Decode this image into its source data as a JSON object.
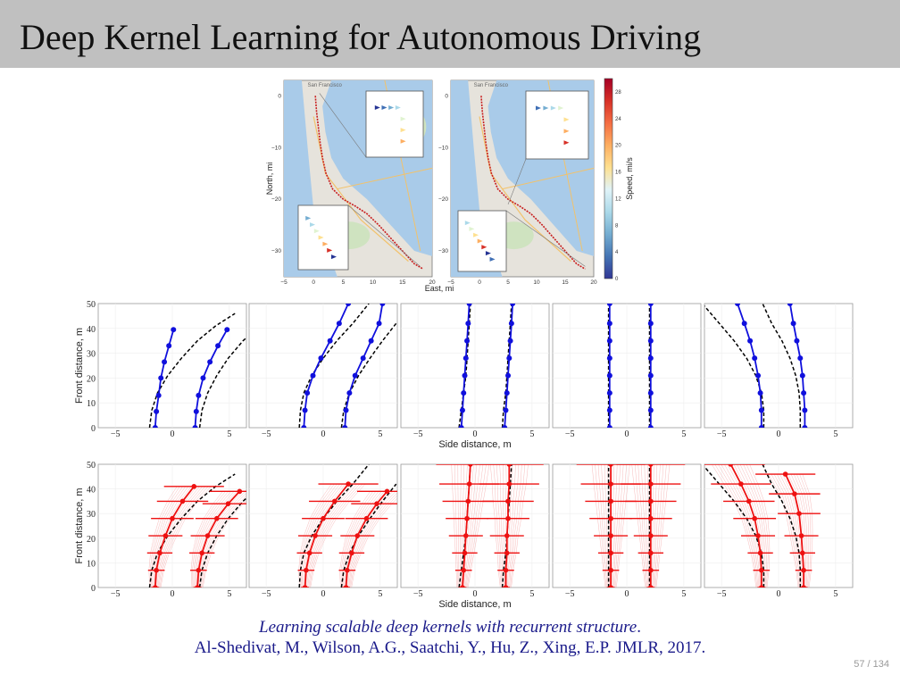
{
  "slide": {
    "title": "Deep Kernel Learning for Autonomous Driving",
    "caption_title": "Learning scalable deep kernels with recurrent structure",
    "caption_period": ".",
    "caption_authors": "Al-Shedivat, M., Wilson, A.G., Saatchi, Y., Hu, Z., Xing, E.P. JMLR, 2017.",
    "page_number": "57 / 134"
  },
  "colors": {
    "route": "#c81e1e",
    "obs": "#1010dd",
    "pred": "#ee1111",
    "truth": "#000000",
    "water": "#a9cbe9",
    "land": "#e6e3dc",
    "park": "#cfe3c0"
  },
  "maps": {
    "ylabel": "North, mi",
    "xlabel": "East, mi",
    "xticks": [
      "−5",
      "0",
      "5",
      "10",
      "15",
      "20"
    ],
    "yticks": [
      "0",
      "−10",
      "−20",
      "−30"
    ],
    "map_labels": [
      "San Francisco",
      "San Francisco"
    ],
    "colorbar": {
      "label": "Speed, mi/s",
      "ticks": [
        "28",
        "24",
        "20",
        "16",
        "12",
        "8",
        "4",
        "0"
      ]
    }
  },
  "chart_data": [
    {
      "type": "line",
      "row": "observed",
      "ylabel": "Front distance, m",
      "xlabel": "Side distance, m",
      "xlim": [
        -6.5,
        6.5
      ],
      "ylim": [
        0,
        50
      ],
      "xticks": [
        "−5",
        "0",
        "5"
      ],
      "yticks": [
        "0",
        "10",
        "20",
        "30",
        "40",
        "50"
      ],
      "panels": [
        {
          "observed": [
            {
              "x": [
                -1.5,
                -1.4,
                -1.2,
                -1.0,
                -0.7,
                -0.3,
                0.1
              ],
              "y": [
                0,
                6.5,
                13,
                20,
                26.5,
                33,
                39.5
              ]
            },
            {
              "x": [
                2.0,
                2.1,
                2.3,
                2.7,
                3.3,
                4.0,
                4.8
              ],
              "y": [
                0,
                6.5,
                13,
                20,
                26.5,
                33,
                39.5
              ]
            }
          ],
          "truth": [
            {
              "x": [
                -2.0,
                -1.8,
                -1.3,
                -0.4,
                0.8,
                2.2,
                3.8,
                5.5
              ],
              "y": [
                0,
                7,
                14,
                21,
                28,
                35,
                41,
                46
              ]
            },
            {
              "x": [
                2.4,
                2.6,
                3.1,
                3.9,
                4.9,
                6.2,
                7.4
              ],
              "y": [
                0,
                7,
                14,
                21,
                28,
                35,
                40
              ]
            }
          ]
        },
        {
          "observed": [
            {
              "x": [
                -1.7,
                -1.6,
                -1.4,
                -0.9,
                -0.2,
                0.6,
                1.4,
                2.2
              ],
              "y": [
                0,
                7,
                14,
                21,
                28,
                35,
                42,
                50
              ]
            },
            {
              "x": [
                1.9,
                2.0,
                2.3,
                2.8,
                3.5,
                4.2,
                4.9,
                5.2
              ],
              "y": [
                0,
                7,
                14,
                21,
                28,
                35,
                42,
                50
              ]
            }
          ],
          "truth": [
            {
              "x": [
                -2.1,
                -2.0,
                -1.7,
                -1.0,
                0.0,
                1.2,
                2.6,
                4.0
              ],
              "y": [
                0,
                7,
                14,
                21,
                28,
                35,
                42,
                50
              ]
            },
            {
              "x": [
                1.6,
                1.8,
                2.3,
                3.1,
                4.1,
                5.2,
                6.4
              ],
              "y": [
                0,
                7,
                14,
                21,
                28,
                35,
                42
              ]
            }
          ]
        },
        {
          "observed": [
            {
              "x": [
                -1.2,
                -1.1,
                -1.0,
                -0.9,
                -0.8,
                -0.7,
                -0.6,
                -0.5
              ],
              "y": [
                0,
                7,
                14,
                21,
                28,
                35,
                42,
                50
              ]
            },
            {
              "x": [
                2.6,
                2.7,
                2.8,
                2.9,
                3.0,
                3.1,
                3.2,
                3.3
              ],
              "y": [
                0,
                7,
                14,
                21,
                28,
                35,
                42,
                50
              ]
            }
          ],
          "truth": [
            {
              "x": [
                -1.4,
                -1.2,
                -1.0,
                -0.8,
                -0.7,
                -0.6,
                -0.5,
                -0.4
              ],
              "y": [
                0,
                7,
                14,
                21,
                28,
                35,
                42,
                50
              ]
            },
            {
              "x": [
                2.4,
                2.5,
                2.7,
                2.8,
                2.9,
                3.0,
                3.1,
                3.2
              ],
              "y": [
                0,
                7,
                14,
                21,
                28,
                35,
                42,
                50
              ]
            }
          ]
        },
        {
          "observed": [
            {
              "x": [
                -1.5,
                -1.5,
                -1.5,
                -1.5,
                -1.5,
                -1.5,
                -1.5,
                -1.5
              ],
              "y": [
                0,
                7,
                14,
                21,
                28,
                35,
                42,
                50
              ]
            },
            {
              "x": [
                2.1,
                2.1,
                2.1,
                2.1,
                2.1,
                2.1,
                2.1,
                2.1
              ],
              "y": [
                0,
                7,
                14,
                21,
                28,
                35,
                42,
                50
              ]
            }
          ],
          "truth": [
            {
              "x": [
                -1.6,
                -1.6,
                -1.6,
                -1.6,
                -1.6,
                -1.6,
                -1.6,
                -1.6
              ],
              "y": [
                0,
                7,
                14,
                21,
                28,
                35,
                42,
                50
              ]
            },
            {
              "x": [
                2.0,
                2.0,
                2.0,
                2.0,
                2.0,
                2.0,
                2.0,
                2.0
              ],
              "y": [
                0,
                7,
                14,
                21,
                28,
                35,
                42,
                50
              ]
            }
          ]
        },
        {
          "observed": [
            {
              "x": [
                -1.5,
                -1.5,
                -1.6,
                -1.8,
                -2.1,
                -2.5,
                -3.0,
                -3.6
              ],
              "y": [
                0,
                7,
                14,
                21,
                28,
                35,
                42,
                50
              ]
            },
            {
              "x": [
                2.3,
                2.3,
                2.2,
                2.1,
                1.9,
                1.6,
                1.3,
                1.0
              ],
              "y": [
                0,
                7,
                14,
                21,
                28,
                35,
                42,
                50
              ]
            }
          ],
          "truth": [
            {
              "x": [
                -1.3,
                -1.3,
                -1.5,
                -2.0,
                -2.8,
                -3.9,
                -5.2,
                -6.5
              ],
              "y": [
                0,
                7,
                14,
                21,
                28,
                35,
                42,
                49
              ]
            },
            {
              "x": [
                1.9,
                1.9,
                1.8,
                1.5,
                1.0,
                0.3,
                -0.6,
                -1.4
              ],
              "y": [
                0,
                7,
                14,
                21,
                28,
                35,
                42,
                50
              ]
            }
          ]
        }
      ]
    },
    {
      "type": "line",
      "row": "predicted",
      "ylabel": "Front distance, m",
      "xlabel": "Side distance, m",
      "xlim": [
        -6.5,
        6.5
      ],
      "ylim": [
        0,
        50
      ],
      "xticks": [
        "−5",
        "0",
        "5"
      ],
      "yticks": [
        "0",
        "10",
        "20",
        "30",
        "40",
        "50"
      ],
      "panels": [
        {
          "predicted": [
            {
              "x": [
                -1.5,
                -1.4,
                -1.1,
                -0.6,
                0.0,
                0.9,
                1.9
              ],
              "y": [
                0,
                7,
                14,
                21,
                28,
                35,
                41
              ]
            },
            {
              "x": [
                2.2,
                2.3,
                2.6,
                3.1,
                3.9,
                4.9,
                5.9
              ],
              "y": [
                0,
                7,
                14,
                21,
                28,
                34,
                39
              ]
            }
          ],
          "truth": [
            {
              "x": [
                -2.0,
                -1.8,
                -1.3,
                -0.4,
                0.8,
                2.2,
                3.8,
                5.5
              ],
              "y": [
                0,
                7,
                14,
                21,
                28,
                35,
                41,
                46
              ]
            },
            {
              "x": [
                2.4,
                2.6,
                3.1,
                3.9,
                4.9,
                6.2,
                7.4
              ],
              "y": [
                0,
                7,
                14,
                21,
                28,
                35,
                40
              ]
            }
          ]
        },
        {
          "predicted": [
            {
              "x": [
                -1.6,
                -1.5,
                -1.2,
                -0.7,
                0.0,
                1.0,
                2.2
              ],
              "y": [
                0,
                7,
                14,
                21,
                28,
                35,
                42
              ]
            },
            {
              "x": [
                2.0,
                2.1,
                2.5,
                3.0,
                3.8,
                4.7,
                5.6
              ],
              "y": [
                0,
                7,
                14,
                21,
                28,
                34,
                39
              ]
            }
          ],
          "truth": [
            {
              "x": [
                -2.1,
                -2.0,
                -1.7,
                -1.0,
                0.0,
                1.2,
                2.6,
                4.0
              ],
              "y": [
                0,
                7,
                14,
                21,
                28,
                35,
                42,
                50
              ]
            },
            {
              "x": [
                1.6,
                1.8,
                2.3,
                3.1,
                4.1,
                5.2,
                6.4
              ],
              "y": [
                0,
                7,
                14,
                21,
                28,
                35,
                42
              ]
            }
          ]
        },
        {
          "predicted": [
            {
              "x": [
                -1.1,
                -1.0,
                -0.9,
                -0.8,
                -0.7,
                -0.6,
                -0.5,
                -0.4
              ],
              "y": [
                0,
                7,
                14,
                21,
                28,
                35,
                42,
                50
              ]
            },
            {
              "x": [
                2.7,
                2.7,
                2.8,
                2.8,
                2.9,
                2.9,
                3.0,
                3.0
              ],
              "y": [
                0,
                7,
                14,
                21,
                28,
                35,
                42,
                50
              ]
            }
          ],
          "truth": [
            {
              "x": [
                -1.4,
                -1.2,
                -1.0,
                -0.8,
                -0.7,
                -0.6,
                -0.5,
                -0.4
              ],
              "y": [
                0,
                7,
                14,
                21,
                28,
                35,
                42,
                50
              ]
            },
            {
              "x": [
                2.4,
                2.5,
                2.7,
                2.8,
                2.9,
                3.0,
                3.1,
                3.2
              ],
              "y": [
                0,
                7,
                14,
                21,
                28,
                35,
                42,
                50
              ]
            }
          ]
        },
        {
          "predicted": [
            {
              "x": [
                -1.4,
                -1.4,
                -1.4,
                -1.4,
                -1.4,
                -1.4,
                -1.4,
                -1.4
              ],
              "y": [
                0,
                7,
                14,
                21,
                28,
                35,
                42,
                50
              ]
            },
            {
              "x": [
                2.1,
                2.1,
                2.1,
                2.1,
                2.1,
                2.1,
                2.1,
                2.1
              ],
              "y": [
                0,
                7,
                14,
                21,
                28,
                35,
                42,
                50
              ]
            }
          ],
          "truth": [
            {
              "x": [
                -1.6,
                -1.6,
                -1.6,
                -1.6,
                -1.6,
                -1.6,
                -1.6,
                -1.6
              ],
              "y": [
                0,
                7,
                14,
                21,
                28,
                35,
                42,
                50
              ]
            },
            {
              "x": [
                2.0,
                2.0,
                2.0,
                2.0,
                2.0,
                2.0,
                2.0,
                2.0
              ],
              "y": [
                0,
                7,
                14,
                21,
                28,
                35,
                42,
                50
              ]
            }
          ]
        },
        {
          "predicted": [
            {
              "x": [
                -1.5,
                -1.5,
                -1.6,
                -1.8,
                -2.1,
                -2.6,
                -3.3,
                -4.2
              ],
              "y": [
                0,
                7,
                14,
                21,
                28,
                35,
                42,
                50
              ]
            },
            {
              "x": [
                2.2,
                2.2,
                2.1,
                2.0,
                1.8,
                1.4,
                0.6
              ],
              "y": [
                0,
                7,
                14,
                21,
                30,
                38,
                46
              ]
            }
          ],
          "truth": [
            {
              "x": [
                -1.3,
                -1.3,
                -1.5,
                -2.0,
                -2.8,
                -3.9,
                -5.2,
                -6.5
              ],
              "y": [
                0,
                7,
                14,
                21,
                28,
                35,
                42,
                49
              ]
            },
            {
              "x": [
                1.9,
                1.9,
                1.8,
                1.5,
                1.0,
                0.3,
                -0.6,
                -1.4
              ],
              "y": [
                0,
                7,
                14,
                21,
                28,
                35,
                42,
                50
              ]
            }
          ]
        }
      ]
    }
  ]
}
